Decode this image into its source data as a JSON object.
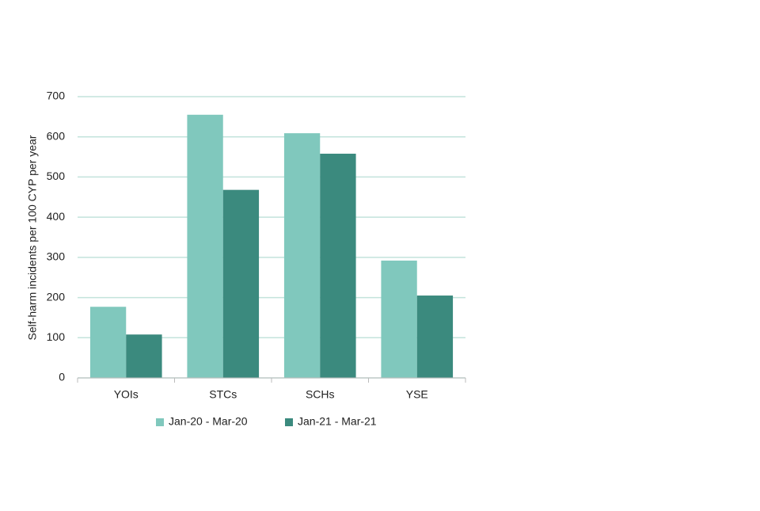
{
  "chart_data": {
    "type": "bar",
    "y_label": "Self-harm incidents per 100 CYP per year",
    "categories": [
      "YOIs",
      "STCs",
      "SCHs",
      "YSE"
    ],
    "series": [
      {
        "name": "Jan-20 - Mar-20",
        "color": "#80c8bd",
        "values": [
          177,
          655,
          609,
          292
        ]
      },
      {
        "name": "Jan-21 - Mar-21",
        "color": "#3b8a7e",
        "values": [
          108,
          468,
          558,
          205
        ]
      }
    ],
    "ylim": [
      0,
      700
    ],
    "yticks": [
      0,
      100,
      200,
      300,
      400,
      500,
      600,
      700
    ],
    "grid": true,
    "legend": "bottom"
  }
}
